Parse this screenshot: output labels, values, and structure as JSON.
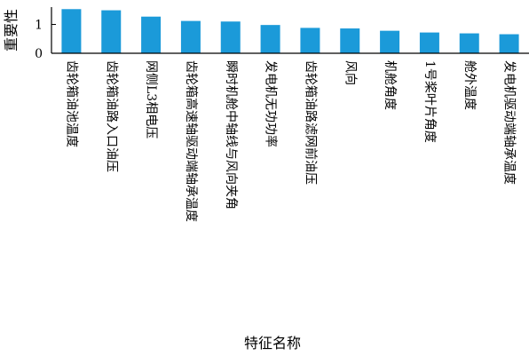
{
  "chart_data": {
    "type": "bar",
    "title": "",
    "xlabel": "特征名称",
    "ylabel": "重要性",
    "ylim": [
      0,
      1.6
    ],
    "yticks": [
      0,
      1
    ],
    "grid": false,
    "legend": "none",
    "bar_color": "#1b9ad9",
    "categories": [
      "齿轮箱油池温度",
      "齿轮箱油路入口油压",
      "网侧L3相电压",
      "齿轮箱高速轴驱动端轴承温度",
      "瞬时机舱中轴线与风向夹角",
      "发电机无功功率",
      "齿轮箱油路滤网前油压",
      "风向",
      "机舱角度",
      "1号桨叶片角度",
      "舱外温度",
      "发电机驱动端轴承温度"
    ],
    "values": [
      1.53,
      1.49,
      1.27,
      1.12,
      1.1,
      0.98,
      0.88,
      0.86,
      0.78,
      0.72,
      0.69,
      0.66
    ]
  }
}
